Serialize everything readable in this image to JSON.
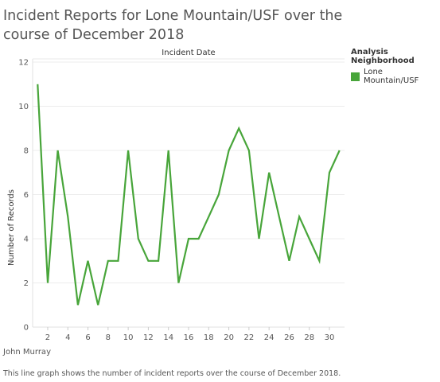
{
  "title": "Incident Reports for Lone Mountain/USF over the course of December 2018",
  "author": "John Murray",
  "caption": "This line graph shows the number of incident reports over the course of December 2018.",
  "legend": {
    "title": "Analysis Neighborhood",
    "items": [
      {
        "label": "Lone Mountain/USF",
        "color": "#48a53a"
      }
    ]
  },
  "chart_data": {
    "type": "line",
    "xlabel": "Incident Date",
    "ylabel": "Number of Records",
    "x": [
      1,
      2,
      3,
      4,
      5,
      6,
      7,
      8,
      9,
      10,
      11,
      12,
      13,
      14,
      15,
      16,
      17,
      18,
      19,
      20,
      21,
      22,
      23,
      24,
      25,
      26,
      27,
      28,
      29,
      30,
      31
    ],
    "x_ticks": [
      2,
      4,
      6,
      8,
      10,
      12,
      14,
      16,
      18,
      20,
      22,
      24,
      26,
      28,
      30
    ],
    "y_ticks": [
      0,
      2,
      4,
      6,
      8,
      10,
      12
    ],
    "xlim": [
      0.5,
      31.5
    ],
    "ylim": [
      0,
      12
    ],
    "grid": "horizontal",
    "series": [
      {
        "name": "Lone Mountain/USF",
        "color": "#48a53a",
        "values": [
          11,
          2,
          8,
          5,
          1,
          3,
          1,
          3,
          3,
          8,
          4,
          3,
          3,
          8,
          2,
          4,
          4,
          5,
          6,
          8,
          9,
          8,
          4,
          7,
          5,
          3,
          5,
          4,
          3,
          7,
          8
        ]
      }
    ]
  }
}
